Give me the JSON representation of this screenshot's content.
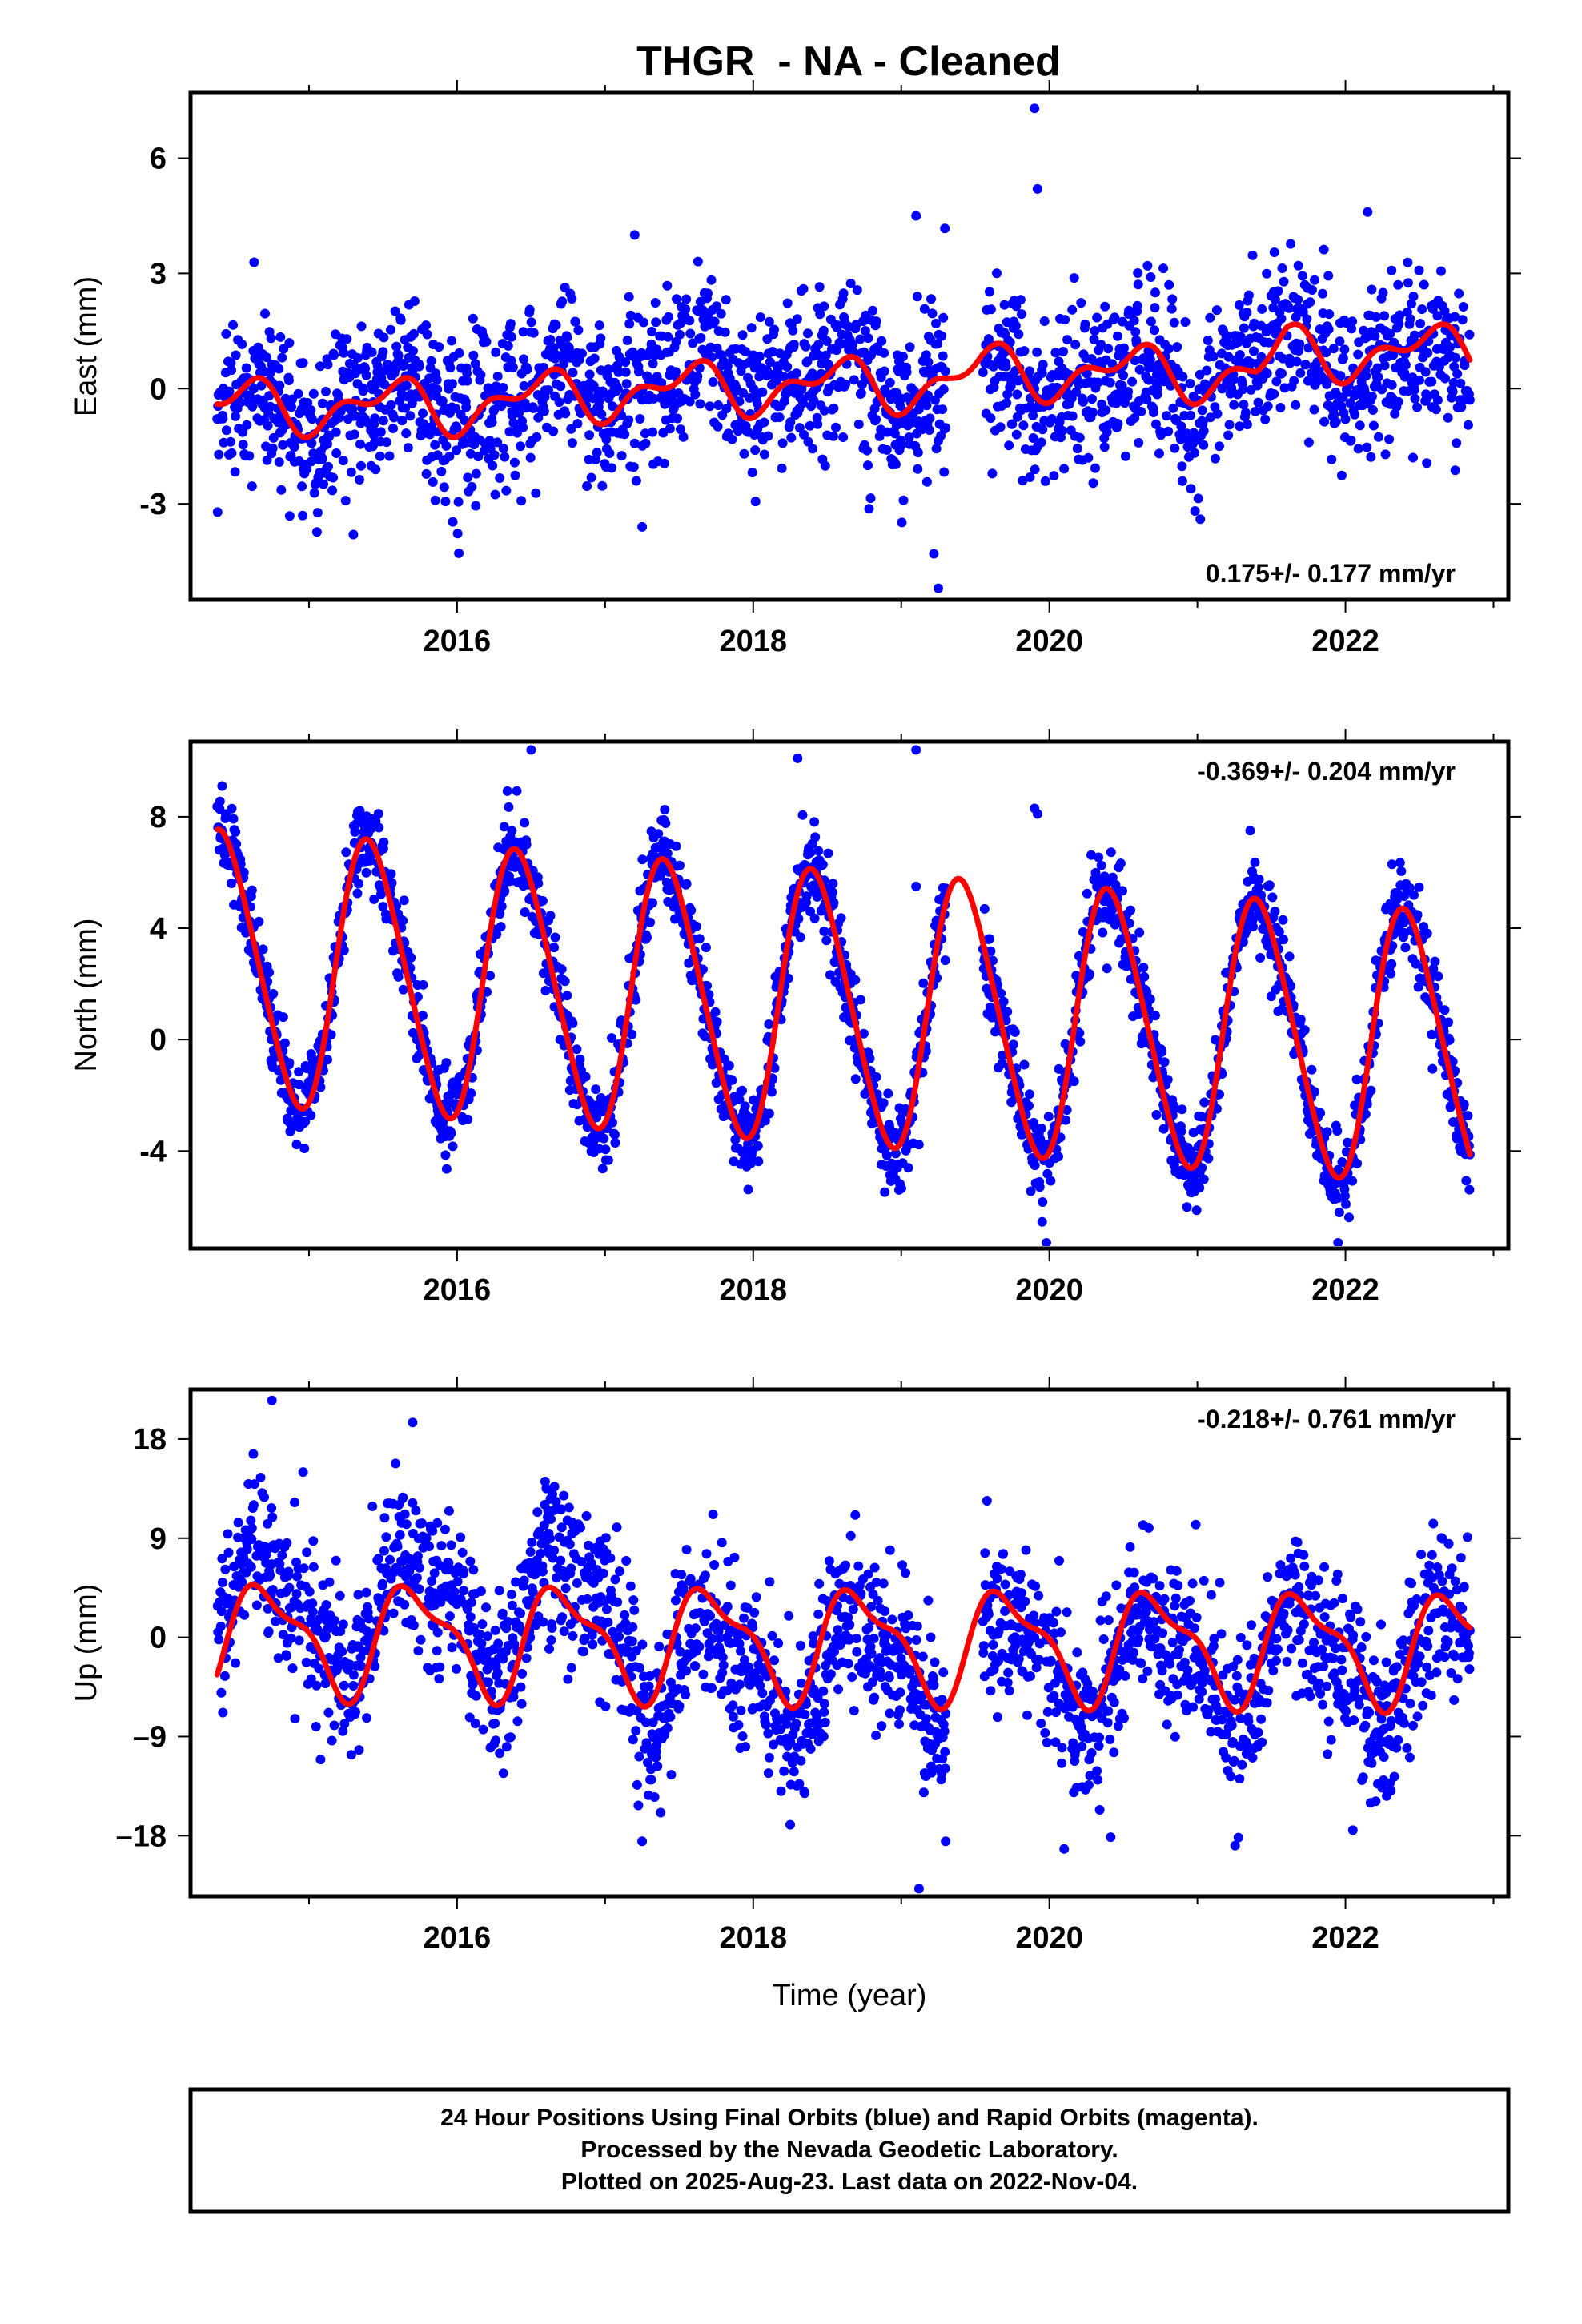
{
  "title": "THGR  - NA - Cleaned",
  "footer": {
    "line1": "24 Hour Positions Using Final Orbits (blue) and Rapid Orbits (magenta).",
    "line2": "Processed by the Nevada Geodetic Laboratory.",
    "line3": "Plotted on 2025-Aug-23. Last data on 2022-Nov-04."
  },
  "colors": {
    "data": "#0000ff",
    "model": "#ff0000",
    "axis": "#000000",
    "background": "#ffffff"
  },
  "chart_data": [
    {
      "type": "scatter",
      "component": "east",
      "ylabel": "East (mm)",
      "xlabel": "",
      "xlim": [
        2014.2,
        2023.1
      ],
      "ylim": [
        -5.5,
        7.7
      ],
      "xticks": [
        2016,
        2018,
        2020,
        2022
      ],
      "yticks": [
        -3,
        0,
        3,
        6
      ],
      "ytick_labels": [
        "-3",
        "0",
        "3",
        "6"
      ],
      "rate_text": "0.175+/- 0.177 mm/yr",
      "rate_position": "bottom-right",
      "data_span": [
        2014.38,
        2022.84
      ],
      "gaps": [
        [
          2019.3,
          2019.55
        ]
      ],
      "series": [
        {
          "role": "daily positions",
          "color": "#0000ff",
          "marker": "dot",
          "scatter_sd": 1.05,
          "trend": [
            [
              2014.4,
              -0.6
            ],
            [
              2016,
              -0.45
            ],
            [
              2017,
              0.4
            ],
            [
              2018,
              0.5
            ],
            [
              2019,
              0.1
            ],
            [
              2020,
              0.25
            ],
            [
              2021,
              0.0
            ],
            [
              2021.6,
              1.0
            ],
            [
              2022.3,
              0.7
            ],
            [
              2022.85,
              0.2
            ]
          ],
          "outliers": [
            [
              2019.9,
              7.3
            ],
            [
              2019.92,
              5.2
            ],
            [
              2019.1,
              4.5
            ],
            [
              2022.15,
              4.6
            ],
            [
              2019.25,
              -5.2
            ],
            [
              2019.22,
              -4.3
            ],
            [
              2017.2,
              4.0
            ],
            [
              2015.3,
              -3.8
            ],
            [
              2017.25,
              -3.6
            ]
          ]
        },
        {
          "role": "model fit",
          "color": "#ff0000",
          "line": true,
          "breaks": [
            2019.3
          ],
          "model": {
            "mean": [
              [
                2014.4,
                -0.45
              ],
              [
                2016,
                -0.45
              ],
              [
                2017,
                -0.1
              ],
              [
                2018,
                0.05
              ],
              [
                2019.3,
                0.15
              ],
              [
                2019.55,
                0.45
              ],
              [
                2021.4,
                0.4
              ],
              [
                2021.6,
                0.95
              ],
              [
                2022.85,
                0.95
              ]
            ],
            "annual_amp": 0.55,
            "annual_phase": 0.55,
            "semiannual_amp": 0.35,
            "semiannual_phase": 0.2
          }
        }
      ]
    },
    {
      "type": "scatter",
      "component": "north",
      "ylabel": "North (mm)",
      "xlabel": "",
      "xlim": [
        2014.2,
        2023.1
      ],
      "ylim": [
        -7.5,
        10.7
      ],
      "xticks": [
        2016,
        2018,
        2020,
        2022
      ],
      "yticks": [
        -4,
        0,
        4,
        8
      ],
      "ytick_labels": [
        "-4",
        "0",
        "4",
        "8"
      ],
      "rate_text": "-0.369+/- 0.204 mm/yr",
      "rate_position": "top-right",
      "data_span": [
        2014.38,
        2022.84
      ],
      "gaps": [
        [
          2019.3,
          2019.55
        ]
      ],
      "series": [
        {
          "role": "daily positions",
          "color": "#0000ff",
          "marker": "dot",
          "scatter_sd": 0.8,
          "trend": [
            [
              2014.4,
              2.6
            ],
            [
              2022.85,
              -0.4
            ]
          ],
          "outliers": [
            [
              2016.5,
              10.4
            ],
            [
              2018.3,
              10.1
            ],
            [
              2019.1,
              10.4
            ],
            [
              2019.9,
              8.3
            ],
            [
              2019.92,
              8.1
            ],
            [
              2019.1,
              5.5
            ],
            [
              2019.98,
              -7.3
            ],
            [
              2021.95,
              -7.3
            ]
          ]
        },
        {
          "role": "model fit",
          "color": "#ff0000",
          "line": true,
          "breaks": [],
          "model": {
            "mean": [
              [
                2014.4,
                2.6
              ],
              [
                2022.85,
                -0.4
              ]
            ],
            "annual_amp": 4.8,
            "annual_phase": 0.42,
            "semiannual_amp": 0.55,
            "semiannual_phase": 0.3
          }
        }
      ]
    },
    {
      "type": "scatter",
      "component": "up",
      "ylabel": "Up (mm)",
      "xlabel": "Time (year)",
      "xlim": [
        2014.2,
        2023.1
      ],
      "ylim": [
        -23.5,
        22.5
      ],
      "xticks": [
        2016,
        2018,
        2020,
        2022
      ],
      "yticks": [
        -18,
        -9,
        0,
        9,
        18
      ],
      "ytick_labels": [
        "–18",
        "–9",
        "0",
        "9",
        "18"
      ],
      "rate_text": "-0.218+/- 0.761 mm/yr",
      "rate_position": "top-right",
      "data_span": [
        2014.38,
        2022.84
      ],
      "gaps": [
        [
          2019.3,
          2019.55
        ]
      ],
      "series": [
        {
          "role": "daily positions",
          "color": "#0000ff",
          "marker": "dot",
          "scatter_sd": 3.6,
          "trend": [
            [
              2014.4,
              2.5
            ],
            [
              2017.1,
              2.5
            ],
            [
              2017.3,
              -3.0
            ],
            [
              2022.85,
              -2.0
            ]
          ],
          "outliers": [
            [
              2014.75,
              21.5
            ],
            [
              2015.7,
              19.5
            ],
            [
              2019.12,
              -22.8
            ],
            [
              2020.1,
              -19.2
            ],
            [
              2017.25,
              -18.5
            ],
            [
              2019.3,
              -18.5
            ],
            [
              2018.25,
              -17.0
            ],
            [
              2022.05,
              -17.5
            ]
          ]
        },
        {
          "role": "model fit",
          "color": "#ff0000",
          "line": true,
          "breaks": [],
          "model": {
            "mean": [
              [
                2014.4,
                0.0
              ],
              [
                2022.85,
                -1.0
              ]
            ],
            "annual_amp": 4.6,
            "annual_phase": 0.72,
            "semiannual_amp": 1.7,
            "semiannual_phase": 0.55
          }
        }
      ]
    }
  ]
}
